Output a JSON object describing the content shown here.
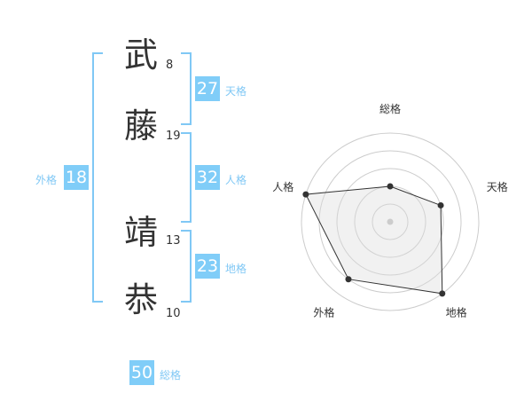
{
  "name": {
    "chars": [
      {
        "char": "武",
        "strokes": "8"
      },
      {
        "char": "藤",
        "strokes": "19"
      },
      {
        "char": "靖",
        "strokes": "13"
      },
      {
        "char": "恭",
        "strokes": "10"
      }
    ]
  },
  "fortunes": {
    "tenkaku": {
      "label": "天格",
      "value": "27"
    },
    "jinkaku": {
      "label": "人格",
      "value": "32"
    },
    "chikaku": {
      "label": "地格",
      "value": "23"
    },
    "gaikaku": {
      "label": "外格",
      "value": "18"
    },
    "soukaku": {
      "label": "総格",
      "value": "50"
    }
  },
  "colors": {
    "accent": "#80cdf8"
  },
  "chart_data": {
    "type": "radar",
    "axes": [
      "総格",
      "天格",
      "地格",
      "外格",
      "人格"
    ],
    "values": [
      2,
      3,
      5,
      4,
      5
    ],
    "range": [
      0,
      5
    ],
    "rings": 5
  }
}
